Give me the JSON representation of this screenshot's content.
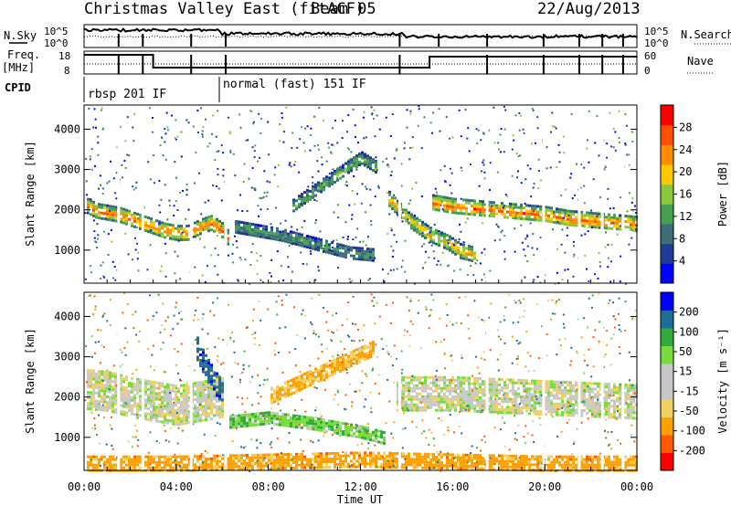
{
  "header": {
    "radar_name": "Christmas Valley East (fitACF)",
    "beam_label": "Beam 05",
    "date": "22/Aug/2013"
  },
  "panels": {
    "nsky_label": "N.Sky",
    "nsky_ticks": [
      "10^5",
      "10^0"
    ],
    "nsearch_label": "N.Search",
    "freq_label_1": "Freq.",
    "freq_label_2": "[MHz]",
    "freq_ticks": [
      "18",
      "8"
    ],
    "nave_label": "Nave",
    "nave_ticks": [
      "60",
      "0"
    ],
    "cpid_label": "CPID",
    "cpid_modes": [
      {
        "label": "rbsp 201 IF",
        "start_hour": 0,
        "end_hour": 6.1
      },
      {
        "label": "normal (fast) 151 IF",
        "start_hour": 6.1,
        "end_hour": 24
      }
    ]
  },
  "chart_data": [
    {
      "type": "heatmap",
      "id": "power",
      "xlabel": "",
      "ylabel": "Slant Range [km]",
      "xlim": [
        0,
        24
      ],
      "ylim": [
        180,
        4600
      ],
      "yticks": [
        "1000",
        "2000",
        "3000",
        "4000"
      ],
      "colorbar": {
        "label": "Power [dB]",
        "ticks": [
          "28",
          "24",
          "20",
          "16",
          "12",
          "8",
          "4"
        ],
        "colors": [
          "#0000ff",
          "#1e3c96",
          "#3c6e78",
          "#46a050",
          "#8cc83c",
          "#ffc800",
          "#ff8c00",
          "#ff5000",
          "#ff0000"
        ]
      },
      "bands": [
        {
          "x": [
            0.0,
            0.5,
            1.0,
            1.5,
            2.0,
            2.5,
            3.0,
            3.5,
            4.0,
            4.5,
            5.0,
            5.5,
            6.0,
            6.3
          ],
          "y": [
            2150,
            2000,
            1950,
            1900,
            1800,
            1700,
            1600,
            1500,
            1450,
            1450,
            1600,
            1700,
            1500,
            1250
          ],
          "width": 180,
          "power": 22
        },
        {
          "x": [
            6.5,
            7.5,
            8.5,
            9.5,
            10.5,
            11.5,
            12.5
          ],
          "y": [
            1600,
            1500,
            1400,
            1250,
            1100,
            950,
            900
          ],
          "width": 150,
          "power": 8
        },
        {
          "x": [
            9.0,
            10.0,
            11.0,
            12.0,
            12.7
          ],
          "y": [
            2100,
            2500,
            2900,
            3300,
            3050
          ],
          "width": 160,
          "power": 10
        },
        {
          "x": [
            13.2,
            14.0,
            15.0,
            15.8,
            16.3,
            17.0
          ],
          "y": [
            2300,
            1800,
            1400,
            1200,
            1000,
            900
          ],
          "width": 180,
          "power": 18
        },
        {
          "x": [
            15.0,
            16.0,
            17.0,
            18.0,
            19.0,
            20.0,
            21.0,
            22.0,
            23.0,
            24.0
          ],
          "y": [
            2200,
            2100,
            2050,
            2000,
            1950,
            1900,
            1800,
            1750,
            1700,
            1650
          ],
          "width": 200,
          "power": 22
        }
      ]
    },
    {
      "type": "heatmap",
      "id": "velocity",
      "xlabel": "Time UT",
      "ylabel": "Slant Range [km]",
      "xlim": [
        0,
        24
      ],
      "ylim": [
        180,
        4600
      ],
      "xticks": [
        "00:00",
        "04:00",
        "08:00",
        "12:00",
        "16:00",
        "20:00",
        "00:00"
      ],
      "yticks": [
        "1000",
        "2000",
        "3000",
        "4000"
      ],
      "colorbar": {
        "label": "Velocity [m s⁻¹]",
        "ticks": [
          "200",
          "100",
          "50",
          "15",
          "-15",
          "-50",
          "-100",
          "-200"
        ],
        "colors": [
          "#ff0000",
          "#ff5a00",
          "#ffa000",
          "#f0d060",
          "#c8c8c8",
          "#c8c8c8",
          "#78dc3c",
          "#32aa3c",
          "#1e6e96",
          "#0000ff"
        ]
      },
      "bands": [
        {
          "x": [
            0.0,
            1.0,
            2.0,
            3.0,
            4.0,
            5.0,
            6.0
          ],
          "y": [
            2200,
            2150,
            2000,
            1900,
            1800,
            1900,
            2000
          ],
          "width": 500,
          "velocity": 0
        },
        {
          "x": [
            4.8,
            5.2,
            5.6,
            6.0
          ],
          "y": [
            3300,
            2800,
            2400,
            2100
          ],
          "width": 300,
          "velocity": 180
        },
        {
          "x": [
            6.3,
            8.0,
            10.0,
            12.0,
            13.0
          ],
          "y": [
            1400,
            1500,
            1350,
            1150,
            1000
          ],
          "width": 150,
          "velocity": 40
        },
        {
          "x": [
            8.0,
            9.5,
            11.0,
            12.5
          ],
          "y": [
            2000,
            2400,
            2800,
            3200
          ],
          "width": 200,
          "velocity": -50
        },
        {
          "x": [
            13.5,
            16.0,
            18.0,
            20.0,
            22.0,
            24.0
          ],
          "y": [
            2100,
            2100,
            2050,
            2000,
            1950,
            1900
          ],
          "width": 420,
          "velocity": 0
        },
        {
          "x": [
            0.0,
            4.0,
            8.0,
            12.0,
            16.0,
            20.0,
            24.0
          ],
          "y": [
            350,
            350,
            400,
            450,
            400,
            350,
            350
          ],
          "width": 200,
          "velocity": -70
        }
      ]
    }
  ]
}
